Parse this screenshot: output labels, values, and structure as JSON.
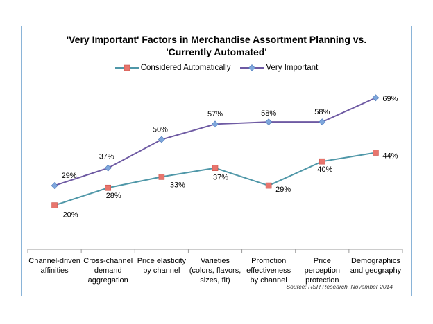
{
  "chart_data": {
    "type": "line",
    "title_lines": [
      "'Very Important' Factors in Merchandise Assortment Planning vs.",
      "'Currently Automated'"
    ],
    "categories": [
      [
        "Channel-driven",
        "affinities"
      ],
      [
        "Cross-channel",
        "demand",
        "aggregation"
      ],
      [
        "Price elasticity",
        "by channel"
      ],
      [
        "Varieties",
        "(colors, flavors,",
        "sizes, fit)"
      ],
      [
        "Promotion",
        "effectiveness",
        "by channel"
      ],
      [
        "Price",
        "perception",
        "protection"
      ],
      [
        "Demographics",
        "and geography"
      ]
    ],
    "series": [
      {
        "name": "Considered Automatically",
        "values": [
          20,
          28,
          33,
          37,
          29,
          40,
          44
        ],
        "labels": [
          "20%",
          "28%",
          "33%",
          "37%",
          "29%",
          "40%",
          "44%"
        ],
        "color": "#4f97a8",
        "marker_color": "#e8756d",
        "marker": "square"
      },
      {
        "name": "Very Important",
        "values": [
          29,
          37,
          50,
          57,
          58,
          58,
          69
        ],
        "labels": [
          "29%",
          "37%",
          "50%",
          "57%",
          "58%",
          "58%",
          "69%"
        ],
        "color": "#6e5aa3",
        "marker_color": "#7ea6dc",
        "marker": "diamond"
      }
    ],
    "ylim": [
      0,
      100
    ],
    "grid": false,
    "legend_position": "top",
    "source": "Source: RSR Research, November 2014"
  }
}
